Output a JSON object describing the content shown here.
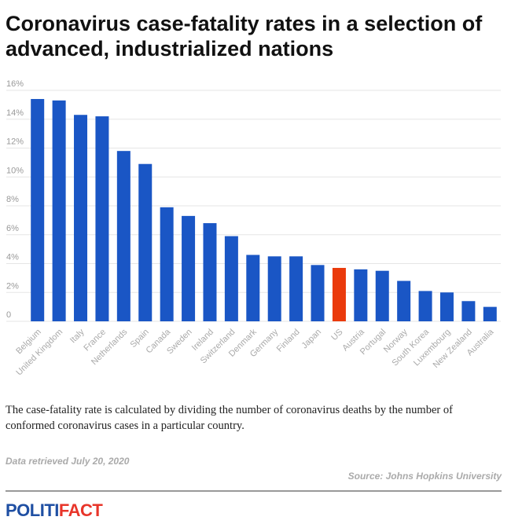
{
  "title": "Coronavirus case-fatality rates in a selection of advanced, industrialized nations",
  "note": "The case-fatality rate is calculated by dividing the number of coronavirus deaths by the number of conformed coronavirus cases in a particular country.",
  "retrieved": "Data retrieved July 20, 2020",
  "source": "Source: Johns Hopkins University",
  "logo": {
    "part1": "POLITI",
    "part2": "FACT"
  },
  "colors": {
    "bar": "#1a56c5",
    "highlight": "#ea3a0c",
    "grid": "#e6e6e6"
  },
  "chart_data": {
    "type": "bar",
    "title": "",
    "xlabel": "",
    "ylabel": "",
    "ylim": [
      0,
      16
    ],
    "yticks": [
      "0",
      "2%",
      "4%",
      "6%",
      "8%",
      "10%",
      "12%",
      "14%",
      "16%"
    ],
    "grid": true,
    "categories": [
      "Belgium",
      "United Kingdom",
      "Italy",
      "France",
      "Netherlands",
      "Spain",
      "Canada",
      "Sweden",
      "Ireland",
      "Switzerland",
      "Denmark",
      "Germany",
      "Finland",
      "Japan",
      "US",
      "Austria",
      "Portugal",
      "Norway",
      "South Korea",
      "Luxembourg",
      "New Zealand",
      "Australia"
    ],
    "values": [
      15.4,
      15.3,
      14.3,
      14.2,
      11.8,
      10.9,
      7.9,
      7.3,
      6.8,
      5.9,
      4.6,
      4.5,
      4.5,
      3.9,
      3.7,
      3.6,
      3.5,
      2.8,
      2.1,
      2.0,
      1.4,
      1.0
    ],
    "highlight": "US"
  }
}
